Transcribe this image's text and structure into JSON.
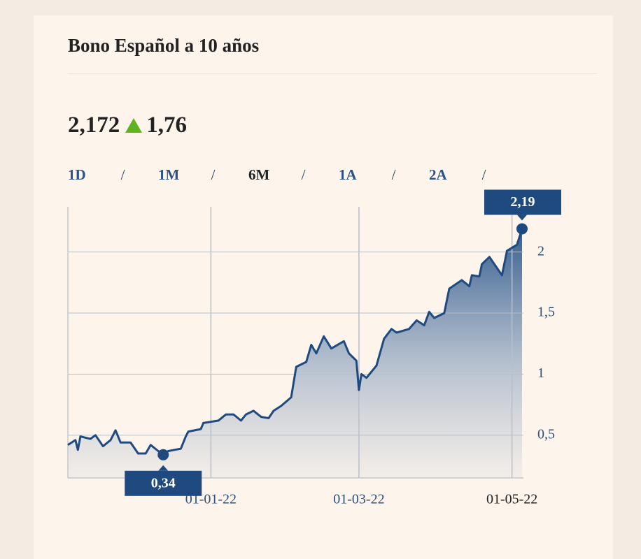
{
  "quote": {
    "price": "2,172",
    "change": "1,76",
    "direction": "up"
  },
  "tabs": [
    "1D",
    "1M",
    "6M",
    "1A",
    "2A"
  ],
  "active_tab": "6M",
  "tab_separator": "/",
  "chart_data": {
    "type": "area",
    "title": "Bono Español a 10 años",
    "x": [
      "2021-11-05",
      "2021-11-08",
      "2021-11-09",
      "2021-11-10",
      "2021-11-14",
      "2021-11-16",
      "2021-11-19",
      "2021-11-22",
      "2021-11-24",
      "2021-11-26",
      "2021-11-30",
      "2021-12-03",
      "2021-12-06",
      "2021-12-08",
      "2021-12-11",
      "2021-12-13",
      "2021-12-15",
      "2021-12-20",
      "2021-12-22",
      "2021-12-23",
      "2021-12-28",
      "2021-12-29",
      "2022-01-04",
      "2022-01-07",
      "2022-01-10",
      "2022-01-13",
      "2022-01-15",
      "2022-01-18",
      "2022-01-21",
      "2022-01-24",
      "2022-01-26",
      "2022-01-29",
      "2022-02-02",
      "2022-02-04",
      "2022-02-08",
      "2022-02-10",
      "2022-02-12",
      "2022-02-15",
      "2022-02-18",
      "2022-02-23",
      "2022-02-25",
      "2022-02-28",
      "2022-03-01",
      "2022-03-02",
      "2022-03-04",
      "2022-03-08",
      "2022-03-11",
      "2022-03-14",
      "2022-03-16",
      "2022-03-21",
      "2022-03-24",
      "2022-03-27",
      "2022-03-29",
      "2022-03-31",
      "2022-04-04",
      "2022-04-06",
      "2022-04-11",
      "2022-04-14",
      "2022-04-15",
      "2022-04-18",
      "2022-04-19",
      "2022-04-22",
      "2022-04-27",
      "2022-04-29",
      "2022-05-03",
      "2022-05-05"
    ],
    "series": [
      {
        "name": "Bono Español a 10 años",
        "color": "#1f4a80",
        "values": [
          0.42,
          0.46,
          0.38,
          0.49,
          0.47,
          0.5,
          0.41,
          0.46,
          0.54,
          0.44,
          0.44,
          0.35,
          0.35,
          0.42,
          0.37,
          0.34,
          0.37,
          0.39,
          0.49,
          0.53,
          0.55,
          0.6,
          0.62,
          0.67,
          0.67,
          0.62,
          0.67,
          0.7,
          0.65,
          0.64,
          0.7,
          0.74,
          0.81,
          1.06,
          1.1,
          1.24,
          1.17,
          1.31,
          1.21,
          1.27,
          1.17,
          1.11,
          0.87,
          1.0,
          0.97,
          1.07,
          1.29,
          1.37,
          1.34,
          1.37,
          1.44,
          1.4,
          1.51,
          1.46,
          1.5,
          1.7,
          1.77,
          1.72,
          1.81,
          1.8,
          1.9,
          1.96,
          1.81,
          2.01,
          2.06,
          2.19
        ]
      }
    ],
    "annotations": [
      {
        "x": "2021-12-13",
        "value": 0.34,
        "label": "0,34"
      },
      {
        "x": "2022-05-05",
        "value": 2.19,
        "label": "2,19"
      }
    ],
    "xlim": [
      "2021-11-05",
      "2022-05-05"
    ],
    "xticks": [
      {
        "value": "2022-01-01",
        "label": "01-01-22"
      },
      {
        "value": "2022-03-01",
        "label": "01-03-22"
      },
      {
        "value": "2022-05-01",
        "label": "01-05-22"
      }
    ],
    "ylim": [
      0.15,
      2.37
    ],
    "yticks": [
      {
        "value": 0.5,
        "label": "0,5"
      },
      1,
      {
        "value": 1.5,
        "label": "1,5"
      },
      2
    ],
    "grid": true
  }
}
